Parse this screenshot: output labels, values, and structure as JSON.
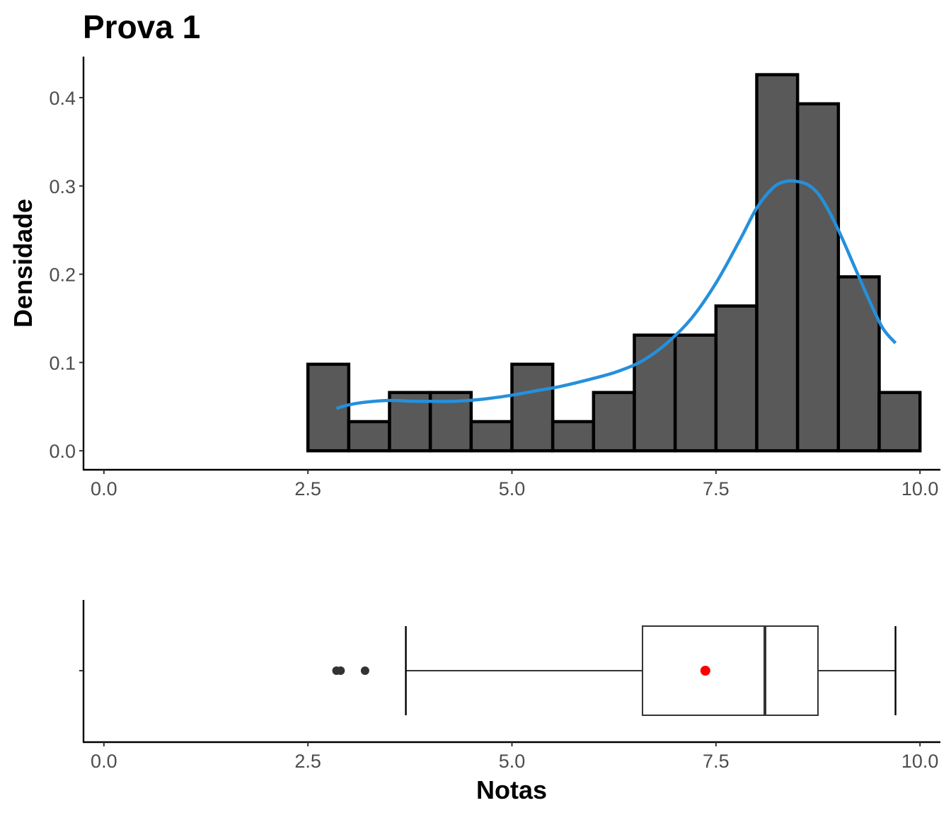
{
  "title": "Prova 1",
  "colors": {
    "bar_fill": "#595959",
    "bar_stroke": "#000000",
    "density_line": "#2590dc",
    "box_stroke": "#333333",
    "mean_point": "#ff0000",
    "outlier_point": "#333333"
  },
  "chart_data": [
    {
      "type": "histogram",
      "ylabel": "Densidade",
      "xlim": [
        -0.25,
        10.25
      ],
      "ylim": [
        -0.0215,
        0.4465
      ],
      "x_ticks": [
        0.0,
        2.5,
        5.0,
        7.5,
        10.0
      ],
      "x_tick_labels": [
        "0.0",
        "2.5",
        "5.0",
        "7.5",
        "10.0"
      ],
      "y_ticks": [
        0.0,
        0.1,
        0.2,
        0.3,
        0.4
      ],
      "y_tick_labels": [
        "0.0",
        "0.1",
        "0.2",
        "0.3",
        "0.4"
      ],
      "grid": false,
      "bin_width": 0.5,
      "bins": [
        {
          "x0": 0.0,
          "x1": 0.5,
          "density": 0.0
        },
        {
          "x0": 0.5,
          "x1": 1.0,
          "density": 0.0
        },
        {
          "x0": 1.0,
          "x1": 1.5,
          "density": 0.0
        },
        {
          "x0": 1.5,
          "x1": 2.0,
          "density": 0.0
        },
        {
          "x0": 2.0,
          "x1": 2.5,
          "density": 0.0
        },
        {
          "x0": 2.5,
          "x1": 3.0,
          "density": 0.098
        },
        {
          "x0": 3.0,
          "x1": 3.5,
          "density": 0.033
        },
        {
          "x0": 3.5,
          "x1": 4.0,
          "density": 0.066
        },
        {
          "x0": 4.0,
          "x1": 4.5,
          "density": 0.066
        },
        {
          "x0": 4.5,
          "x1": 5.0,
          "density": 0.033
        },
        {
          "x0": 5.0,
          "x1": 5.5,
          "density": 0.098
        },
        {
          "x0": 5.5,
          "x1": 6.0,
          "density": 0.033
        },
        {
          "x0": 6.0,
          "x1": 6.5,
          "density": 0.066
        },
        {
          "x0": 6.5,
          "x1": 7.0,
          "density": 0.131
        },
        {
          "x0": 7.0,
          "x1": 7.5,
          "density": 0.131
        },
        {
          "x0": 7.5,
          "x1": 8.0,
          "density": 0.164
        },
        {
          "x0": 8.0,
          "x1": 8.5,
          "density": 0.426
        },
        {
          "x0": 8.5,
          "x1": 9.0,
          "density": 0.393
        },
        {
          "x0": 9.0,
          "x1": 9.5,
          "density": 0.197
        },
        {
          "x0": 9.5,
          "x1": 10.0,
          "density": 0.066
        }
      ],
      "density_curve": {
        "x": [
          2.85,
          3.0,
          3.2,
          3.5,
          3.8,
          4.0,
          4.3,
          4.6,
          5.0,
          5.3,
          5.6,
          6.0,
          6.3,
          6.6,
          6.9,
          7.2,
          7.5,
          7.8,
          8.0,
          8.2,
          8.35,
          8.5,
          8.65,
          8.8,
          9.0,
          9.2,
          9.4,
          9.55,
          9.7
        ],
        "y": [
          0.048,
          0.052,
          0.055,
          0.057,
          0.056,
          0.056,
          0.056,
          0.058,
          0.063,
          0.068,
          0.073,
          0.082,
          0.09,
          0.102,
          0.122,
          0.15,
          0.19,
          0.24,
          0.275,
          0.298,
          0.305,
          0.305,
          0.3,
          0.285,
          0.25,
          0.208,
          0.166,
          0.138,
          0.122
        ]
      }
    },
    {
      "type": "boxplot",
      "xlabel": "Notas",
      "xlim": [
        -0.25,
        10.25
      ],
      "x_ticks": [
        0.0,
        2.5,
        5.0,
        7.5,
        10.0
      ],
      "x_tick_labels": [
        "0.0",
        "2.5",
        "5.0",
        "7.5",
        "10.0"
      ],
      "grid": false,
      "whisker_low": 3.7,
      "q1": 6.6,
      "median": 8.1,
      "q3": 8.75,
      "whisker_high": 9.7,
      "mean": 7.37,
      "outliers": [
        2.85,
        2.9,
        3.2
      ]
    }
  ]
}
